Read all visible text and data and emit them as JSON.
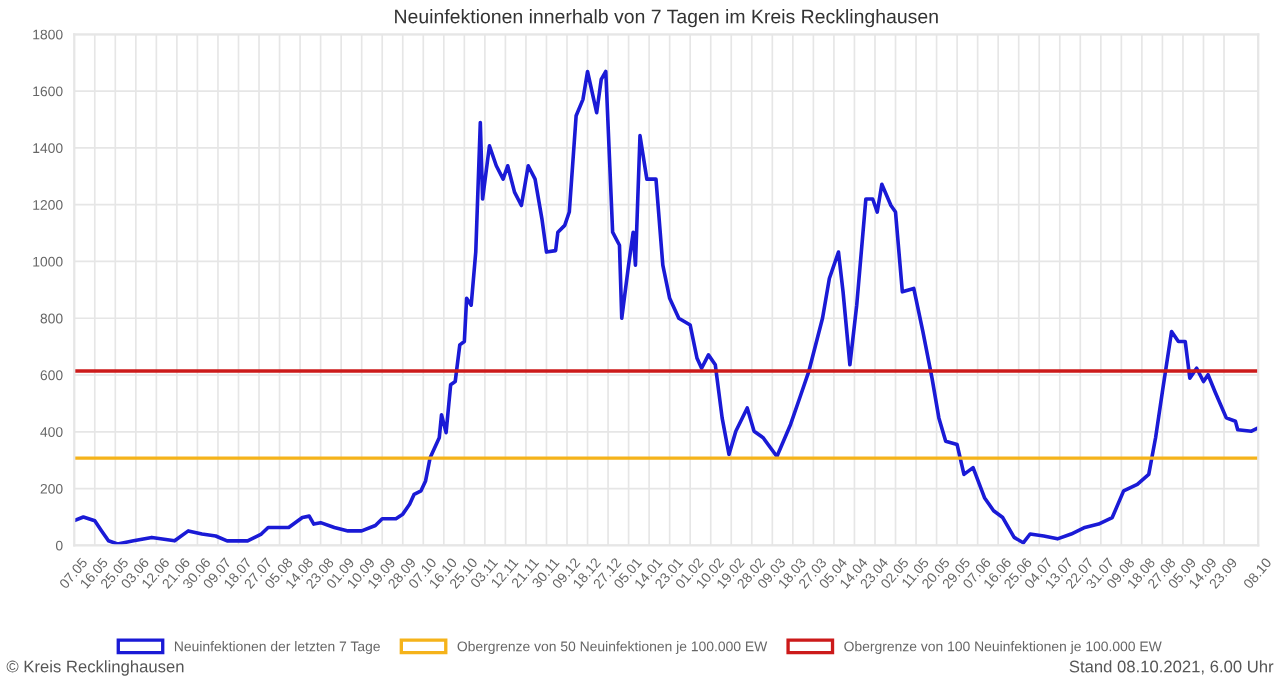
{
  "chart_data": {
    "type": "line",
    "title": "Neuinfektionen innerhalb von 7 Tagen im Kreis Recklinghausen",
    "series": [
      {
        "name": "Neuinfektionen der letzten 7 Tage",
        "color": "#1a1ad6",
        "x": [
          "2020-05-07",
          "2020-05-11",
          "2020-05-16",
          "2020-05-19",
          "2020-05-22",
          "2020-05-26",
          "2020-06-02",
          "2020-06-10",
          "2020-06-20",
          "2020-06-26",
          "2020-07-02",
          "2020-07-08",
          "2020-07-13",
          "2020-07-22",
          "2020-07-28",
          "2020-07-31",
          "2020-08-09",
          "2020-08-15",
          "2020-08-18",
          "2020-08-20",
          "2020-08-23",
          "2020-08-29",
          "2020-09-04",
          "2020-09-10",
          "2020-09-16",
          "2020-09-19",
          "2020-09-25",
          "2020-09-28",
          "2020-10-01",
          "2020-10-03",
          "2020-10-06",
          "2020-10-08",
          "2020-10-10",
          "2020-10-12",
          "2020-10-14",
          "2020-10-15",
          "2020-10-17",
          "2020-10-19",
          "2020-10-21",
          "2020-10-23",
          "2020-10-25",
          "2020-10-26",
          "2020-10-28",
          "2020-10-30",
          "2020-11-01",
          "2020-11-02",
          "2020-11-05",
          "2020-11-08",
          "2020-11-11",
          "2020-11-13",
          "2020-11-16",
          "2020-11-19",
          "2020-11-22",
          "2020-11-25",
          "2020-11-28",
          "2020-11-30",
          "2020-12-04",
          "2020-12-05",
          "2020-12-08",
          "2020-12-10",
          "2020-12-13",
          "2020-12-16",
          "2020-12-18",
          "2020-12-22",
          "2020-12-24",
          "2020-12-26",
          "2020-12-29",
          "2021-01-01",
          "2021-01-02",
          "2021-01-05",
          "2021-01-07",
          "2021-01-08",
          "2021-01-10",
          "2021-01-13",
          "2021-01-17",
          "2021-01-20",
          "2021-01-23",
          "2021-01-27",
          "2021-02-01",
          "2021-02-04",
          "2021-02-06",
          "2021-02-09",
          "2021-02-12",
          "2021-02-15",
          "2021-02-18",
          "2021-02-21",
          "2021-02-26",
          "2021-03-01",
          "2021-03-05",
          "2021-03-11",
          "2021-03-17",
          "2021-03-21",
          "2021-03-25",
          "2021-03-31",
          "2021-04-03",
          "2021-04-07",
          "2021-04-09",
          "2021-04-12",
          "2021-04-15",
          "2021-04-19",
          "2021-04-22",
          "2021-04-24",
          "2021-04-26",
          "2021-04-30",
          "2021-05-02",
          "2021-05-05",
          "2021-05-10",
          "2021-05-14",
          "2021-05-18",
          "2021-05-21",
          "2021-05-24",
          "2021-05-29",
          "2021-06-01",
          "2021-06-05",
          "2021-06-10",
          "2021-06-14",
          "2021-06-18",
          "2021-06-23",
          "2021-06-27",
          "2021-06-30",
          "2021-07-06",
          "2021-07-12",
          "2021-07-18",
          "2021-07-24",
          "2021-07-30",
          "2021-08-05",
          "2021-08-10",
          "2021-08-16",
          "2021-08-21",
          "2021-08-24",
          "2021-08-27",
          "2021-08-31",
          "2021-09-03",
          "2021-09-06",
          "2021-09-08",
          "2021-09-11",
          "2021-09-14",
          "2021-09-16",
          "2021-09-19",
          "2021-09-24",
          "2021-09-28",
          "2021-09-29",
          "2021-10-05",
          "2021-10-08"
        ],
        "values": [
          87,
          100,
          87,
          51,
          16,
          5,
          16,
          28,
          16,
          51,
          40,
          33,
          16,
          16,
          40,
          63,
          63,
          98,
          103,
          75,
          80,
          63,
          51,
          51,
          70,
          94,
          94,
          110,
          145,
          180,
          192,
          227,
          309,
          344,
          379,
          460,
          397,
          566,
          577,
          706,
          718,
          870,
          846,
          1033,
          1489,
          1220,
          1407,
          1337,
          1290,
          1337,
          1244,
          1197,
          1337,
          1290,
          1150,
          1033,
          1038,
          1103,
          1127,
          1174,
          1513,
          1571,
          1669,
          1524,
          1641,
          1669,
          1103,
          1057,
          800,
          987,
          1103,
          987,
          1443,
          1290,
          1290,
          987,
          870,
          800,
          776,
          659,
          624,
          671,
          636,
          449,
          320,
          402,
          484,
          402,
          379,
          313,
          426,
          519,
          613,
          800,
          940,
          1033,
          893,
          636,
          846,
          1220,
          1220,
          1174,
          1272,
          1197,
          1174,
          893,
          905,
          753,
          589,
          449,
          367,
          355,
          250,
          274,
          168,
          122,
          98,
          28,
          9,
          40,
          33,
          23,
          40,
          63,
          75,
          98,
          192,
          215,
          250,
          379,
          542,
          753,
          718,
          718,
          589,
          624,
          577,
          601,
          542,
          449,
          437,
          407,
          402,
          414
        ]
      }
    ],
    "ref_lines": [
      {
        "axis": "y",
        "value": 307,
        "label": "Obergrenze von 50 Neuinfektionen je 100.000 EW",
        "color": "#f5b31a"
      },
      {
        "axis": "y",
        "value": 614,
        "label": "Obergrenze von 100 Neuinfektionen je 100.000 EW",
        "color": "#cc1a1a"
      }
    ],
    "xlim": [
      "2020-05-07",
      "2021-10-08"
    ],
    "ylim": [
      0,
      1800
    ],
    "yticks": [
      0,
      200,
      400,
      600,
      800,
      1000,
      1200,
      1400,
      1600,
      1800
    ],
    "xticks": [
      {
        "value": "2020-05-07",
        "label": "07.05"
      },
      {
        "value": "2020-05-16",
        "label": "16.05"
      },
      {
        "value": "2020-05-25",
        "label": "25.05"
      },
      {
        "value": "2020-06-03",
        "label": "03.06"
      },
      {
        "value": "2020-06-12",
        "label": "12.06"
      },
      {
        "value": "2020-06-21",
        "label": "21.06"
      },
      {
        "value": "2020-06-30",
        "label": "30.06"
      },
      {
        "value": "2020-07-09",
        "label": "09.07"
      },
      {
        "value": "2020-07-18",
        "label": "18.07"
      },
      {
        "value": "2020-07-27",
        "label": "27.07"
      },
      {
        "value": "2020-08-05",
        "label": "05.08"
      },
      {
        "value": "2020-08-14",
        "label": "14.08"
      },
      {
        "value": "2020-08-23",
        "label": "23.08"
      },
      {
        "value": "2020-09-01",
        "label": "01.09"
      },
      {
        "value": "2020-09-10",
        "label": "10.09"
      },
      {
        "value": "2020-09-19",
        "label": "19.09"
      },
      {
        "value": "2020-09-28",
        "label": "28.09"
      },
      {
        "value": "2020-10-07",
        "label": "07.10"
      },
      {
        "value": "2020-10-16",
        "label": "16.10"
      },
      {
        "value": "2020-10-25",
        "label": "25.10"
      },
      {
        "value": "2020-11-03",
        "label": "03.11"
      },
      {
        "value": "2020-11-12",
        "label": "12.11"
      },
      {
        "value": "2020-11-21",
        "label": "21.11"
      },
      {
        "value": "2020-11-30",
        "label": "30.11"
      },
      {
        "value": "2020-12-09",
        "label": "09.12"
      },
      {
        "value": "2020-12-18",
        "label": "18.12"
      },
      {
        "value": "2020-12-27",
        "label": "27.12"
      },
      {
        "value": "2021-01-05",
        "label": "05.01"
      },
      {
        "value": "2021-01-14",
        "label": "14.01"
      },
      {
        "value": "2021-01-23",
        "label": "23.01"
      },
      {
        "value": "2021-02-01",
        "label": "01.02"
      },
      {
        "value": "2021-02-10",
        "label": "10.02"
      },
      {
        "value": "2021-02-19",
        "label": "19.02"
      },
      {
        "value": "2021-02-28",
        "label": "28.02"
      },
      {
        "value": "2021-03-09",
        "label": "09.03"
      },
      {
        "value": "2021-03-18",
        "label": "18.03"
      },
      {
        "value": "2021-03-27",
        "label": "27.03"
      },
      {
        "value": "2021-04-05",
        "label": "05.04"
      },
      {
        "value": "2021-04-14",
        "label": "14.04"
      },
      {
        "value": "2021-04-23",
        "label": "23.04"
      },
      {
        "value": "2021-05-02",
        "label": "02.05"
      },
      {
        "value": "2021-05-11",
        "label": "11.05"
      },
      {
        "value": "2021-05-20",
        "label": "20.05"
      },
      {
        "value": "2021-05-29",
        "label": "29.05"
      },
      {
        "value": "2021-06-07",
        "label": "07.06"
      },
      {
        "value": "2021-06-16",
        "label": "16.06"
      },
      {
        "value": "2021-06-25",
        "label": "25.06"
      },
      {
        "value": "2021-07-04",
        "label": "04.07"
      },
      {
        "value": "2021-07-13",
        "label": "13.07"
      },
      {
        "value": "2021-07-22",
        "label": "22.07"
      },
      {
        "value": "2021-07-31",
        "label": "31.07"
      },
      {
        "value": "2021-08-09",
        "label": "09.08"
      },
      {
        "value": "2021-08-18",
        "label": "18.08"
      },
      {
        "value": "2021-08-27",
        "label": "27.08"
      },
      {
        "value": "2021-09-05",
        "label": "05.09"
      },
      {
        "value": "2021-09-14",
        "label": "14.09"
      },
      {
        "value": "2021-09-23",
        "label": "23.09"
      },
      {
        "value": "2021-10-08",
        "label": "08.10"
      }
    ],
    "grid": true,
    "legend": "bottom",
    "marker": "none",
    "line_style": "solid",
    "annotations": [
      "© Kreis Recklinghausen",
      "Stand 08.10.2021, 6.00 Uhr"
    ]
  }
}
